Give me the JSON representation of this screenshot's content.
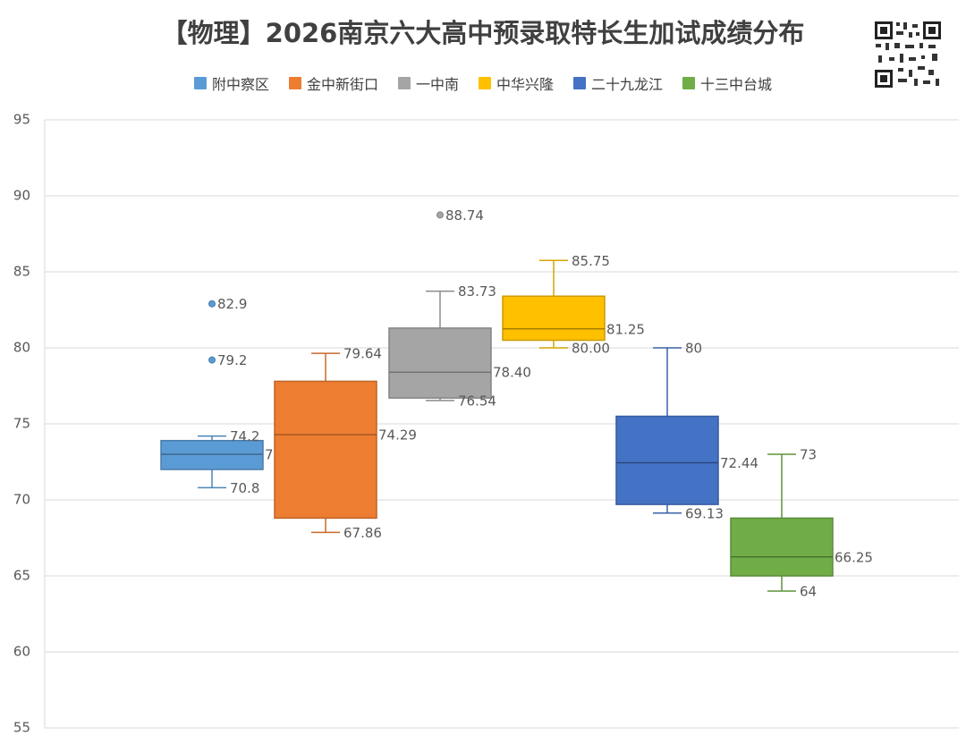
{
  "chart_data": {
    "type": "box",
    "title": "【物理】2026南京六大高中预录取特长生加试成绩分布",
    "ylim": [
      55,
      95
    ],
    "yticks": [
      55,
      60,
      65,
      70,
      75,
      80,
      85,
      90,
      95
    ],
    "grid": true,
    "legend_position": "top",
    "series": [
      {
        "name": "附中察区",
        "color": "#5b9bd5",
        "min": 70.8,
        "q1": 72.0,
        "median": 73,
        "q3": 73.9,
        "max": 74.2,
        "outliers": [
          79.2,
          82.9
        ],
        "labels": {
          "max": "74.2",
          "median": "73",
          "min": "70.8",
          "outliers": [
            "79.2",
            "82.9"
          ]
        }
      },
      {
        "name": "金中新街口",
        "color": "#ed7d31",
        "min": 67.86,
        "q1": 68.8,
        "median": 74.29,
        "q3": 77.8,
        "max": 79.64,
        "outliers": [],
        "labels": {
          "max": "79.64",
          "median": "74.29",
          "min": "67.86",
          "outliers": []
        }
      },
      {
        "name": "一中南",
        "color": "#a5a5a5",
        "min": 76.54,
        "q1": 76.7,
        "median": 78.4,
        "q3": 81.3,
        "max": 83.73,
        "outliers": [
          88.74
        ],
        "labels": {
          "max": "83.73",
          "median": "78.40",
          "min": "76.54",
          "outliers": [
            "88.74"
          ]
        }
      },
      {
        "name": "中华兴隆",
        "color": "#ffc000",
        "min": 80.0,
        "q1": 80.5,
        "median": 81.25,
        "q3": 83.4,
        "max": 85.75,
        "outliers": [],
        "labels": {
          "max": "85.75",
          "median": "81.25",
          "min": "80.00",
          "outliers": []
        }
      },
      {
        "name": "二十九龙江",
        "color": "#4472c4",
        "min": 69.13,
        "q1": 69.7,
        "median": 72.44,
        "q3": 75.5,
        "max": 80,
        "outliers": [],
        "labels": {
          "max": "80",
          "median": "72.44",
          "min": "69.13",
          "outliers": []
        }
      },
      {
        "name": "十三中台城",
        "color": "#70ad47",
        "min": 64,
        "q1": 65.0,
        "median": 66.25,
        "q3": 68.8,
        "max": 73,
        "outliers": [],
        "labels": {
          "max": "73",
          "median": "66.25",
          "min": "64",
          "outliers": []
        }
      }
    ]
  }
}
